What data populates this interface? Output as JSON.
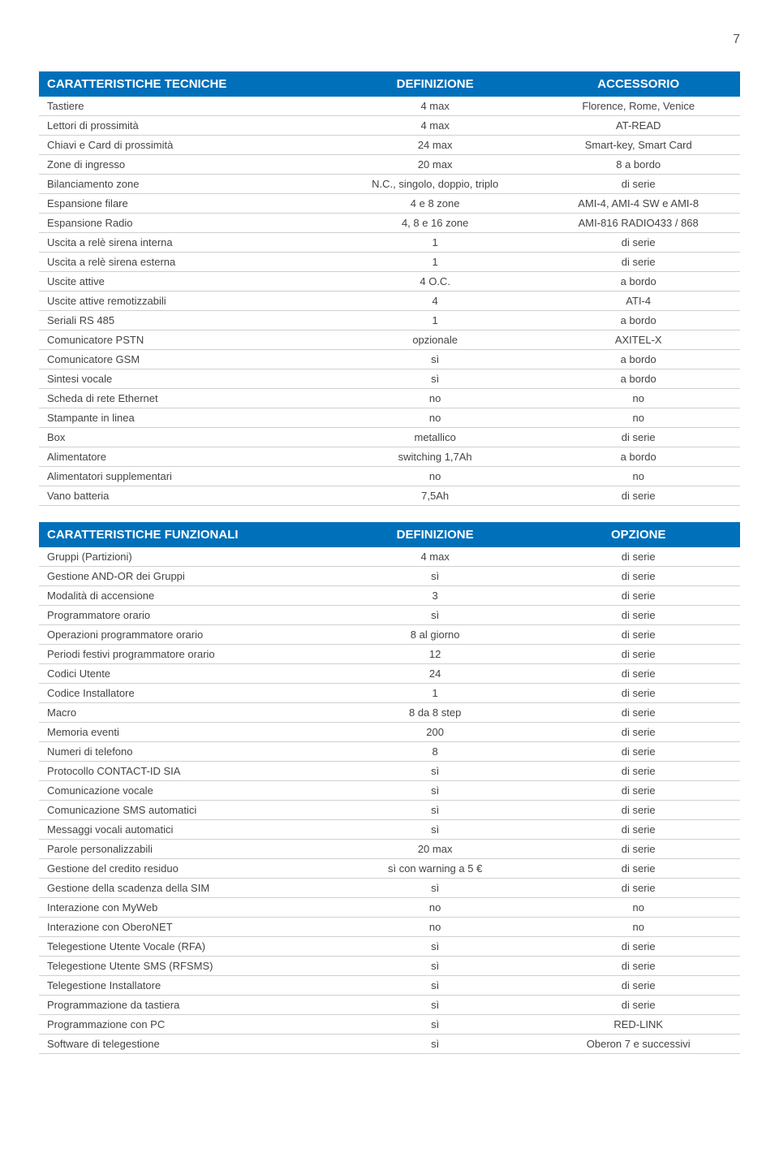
{
  "page_number": "7",
  "table1": {
    "headers": [
      "CARATTERISTICHE TECNICHE",
      "DEFINIZIONE",
      "ACCESSORIO"
    ],
    "header_bg": "#0070ba",
    "header_fg": "#ffffff",
    "rows": [
      [
        "Tastiere",
        "4 max",
        "Florence, Rome, Venice"
      ],
      [
        "Lettori di prossimità",
        "4 max",
        "AT-READ"
      ],
      [
        "Chiavi e Card di prossimità",
        "24 max",
        "Smart-key, Smart Card"
      ],
      [
        "Zone di ingresso",
        "20 max",
        "8 a bordo"
      ],
      [
        "Bilanciamento zone",
        "N.C., singolo, doppio, triplo",
        "di serie"
      ],
      [
        "Espansione filare",
        "4 e 8 zone",
        "AMI-4, AMI-4 SW e AMI-8"
      ],
      [
        "Espansione Radio",
        "4, 8 e 16 zone",
        "AMI-816 RADIO433 / 868"
      ],
      [
        "Uscita a relè sirena interna",
        "1",
        "di serie"
      ],
      [
        "Uscita a relè sirena esterna",
        "1",
        "di serie"
      ],
      [
        "Uscite attive",
        "4 O.C.",
        "a bordo"
      ],
      [
        "Uscite attive remotizzabili",
        "4",
        "ATI-4"
      ],
      [
        "Seriali RS 485",
        "1",
        "a bordo"
      ],
      [
        "Comunicatore PSTN",
        "opzionale",
        "AXITEL-X"
      ],
      [
        "Comunicatore GSM",
        "sì",
        "a bordo"
      ],
      [
        "Sintesi vocale",
        "sì",
        "a bordo"
      ],
      [
        "Scheda di rete Ethernet",
        "no",
        "no"
      ],
      [
        "Stampante in linea",
        "no",
        "no"
      ],
      [
        "Box",
        "metallico",
        "di serie"
      ],
      [
        "Alimentatore",
        "switching 1,7Ah",
        "a bordo"
      ],
      [
        "Alimentatori supplementari",
        "no",
        "no"
      ],
      [
        "Vano batteria",
        "7,5Ah",
        "di serie"
      ]
    ]
  },
  "table2": {
    "headers": [
      "CARATTERISTICHE FUNZIONALI",
      "DEFINIZIONE",
      "OPZIONE"
    ],
    "header_bg": "#0070ba",
    "header_fg": "#ffffff",
    "rows": [
      [
        "Gruppi (Partizioni)",
        "4 max",
        "di serie"
      ],
      [
        "Gestione AND-OR dei Gruppi",
        "sì",
        "di serie"
      ],
      [
        "Modalità di accensione",
        "3",
        "di serie"
      ],
      [
        "Programmatore orario",
        "sì",
        "di serie"
      ],
      [
        "Operazioni programmatore orario",
        "8 al giorno",
        "di serie"
      ],
      [
        "Periodi festivi programmatore orario",
        "12",
        "di serie"
      ],
      [
        "Codici Utente",
        "24",
        "di serie"
      ],
      [
        "Codice Installatore",
        "1",
        "di serie"
      ],
      [
        "Macro",
        "8 da 8 step",
        "di serie"
      ],
      [
        "Memoria eventi",
        "200",
        "di serie"
      ],
      [
        "Numeri di telefono",
        "8",
        "di serie"
      ],
      [
        "Protocollo CONTACT-ID SIA",
        "sì",
        "di serie"
      ],
      [
        "Comunicazione vocale",
        "sì",
        "di serie"
      ],
      [
        "Comunicazione SMS automatici",
        "sì",
        "di serie"
      ],
      [
        "Messaggi vocali automatici",
        "sì",
        "di serie"
      ],
      [
        "Parole personalizzabili",
        "20 max",
        "di serie"
      ],
      [
        "Gestione del credito residuo",
        "sì con warning a 5 €",
        "di serie"
      ],
      [
        "Gestione della scadenza della SIM",
        "sì",
        "di serie"
      ],
      [
        "Interazione con MyWeb",
        "no",
        "no"
      ],
      [
        "Interazione con OberoNET",
        "no",
        "no"
      ],
      [
        "Telegestione Utente Vocale (RFA)",
        "sì",
        "di serie"
      ],
      [
        "Telegestione Utente SMS (RFSMS)",
        "sì",
        "di serie"
      ],
      [
        "Telegestione Installatore",
        "sì",
        "di serie"
      ],
      [
        "Programmazione da tastiera",
        "sì",
        "di serie"
      ],
      [
        "Programmazione con PC",
        "sì",
        "RED-LINK"
      ],
      [
        "Software di telegestione",
        "sì",
        "Oberon 7 e successivi"
      ]
    ]
  }
}
